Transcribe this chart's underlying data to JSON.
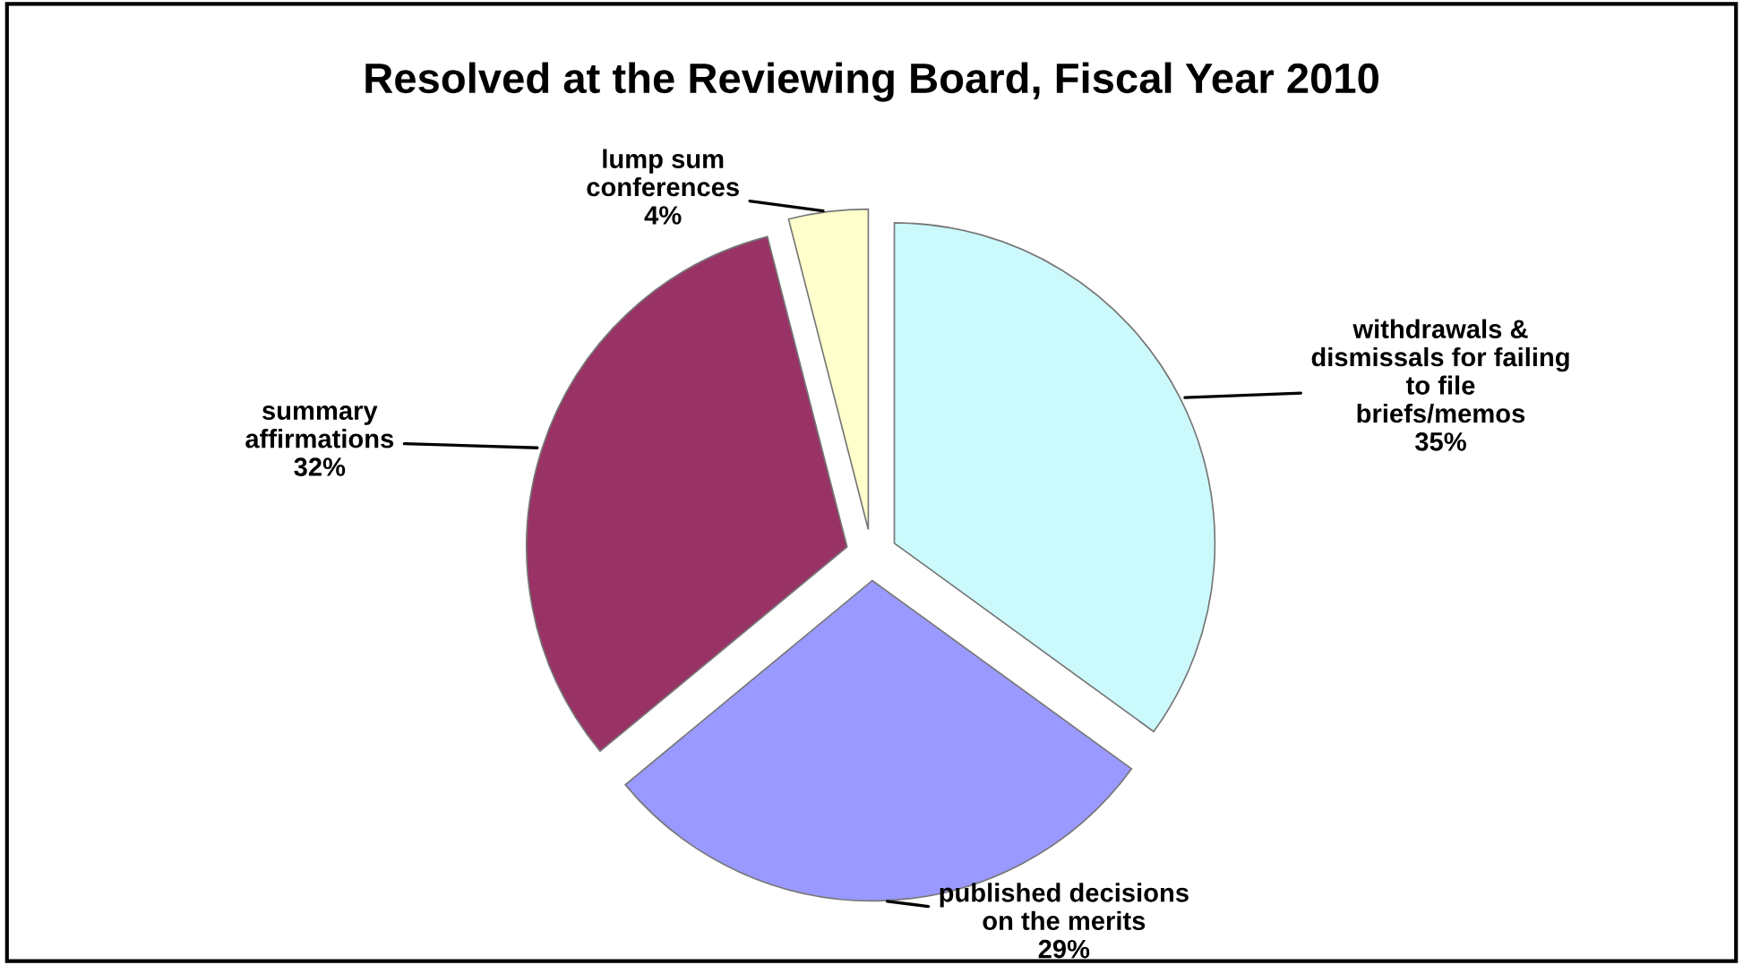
{
  "chart_data": {
    "type": "pie",
    "title": "Resolved at the Reviewing Board, Fiscal Year 2010",
    "categories": [
      "withdrawals &\ndismissals for failing\nto file\nbriefs/memos",
      "published decisions\non the merits",
      "summary\naffirmations",
      "lump sum\nconferences"
    ],
    "values": [
      35,
      29,
      32,
      4
    ],
    "value_labels": [
      "35%",
      "29%",
      "32%",
      "4%"
    ],
    "colors": [
      "#ccfafc",
      "#9999ff",
      "#993366",
      "#ffffcc"
    ]
  }
}
